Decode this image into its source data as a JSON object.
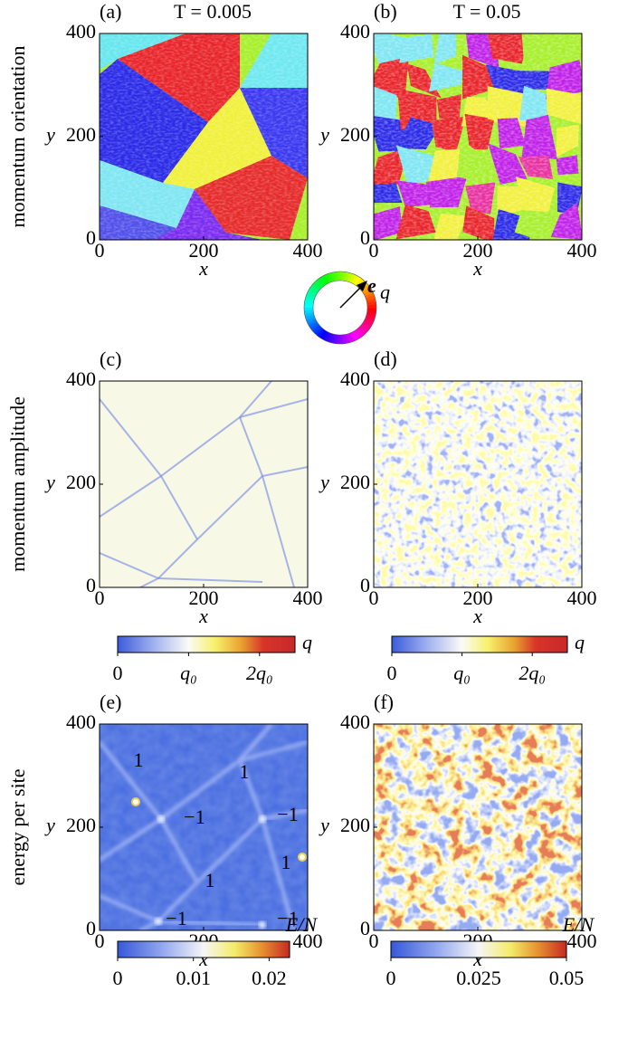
{
  "chart_data": [
    {
      "type": "image",
      "panel": "(a)",
      "title": "T = 0.005",
      "row_label": "momentum orientation",
      "x_label": "x",
      "y_label": "y",
      "xlim": [
        0,
        400
      ],
      "ylim": [
        0,
        400
      ],
      "xticks": [
        0,
        200,
        400
      ],
      "yticks": [
        0,
        200,
        400
      ]
    },
    {
      "type": "image",
      "panel": "(b)",
      "title": "T = 0.05",
      "x_label": "x",
      "y_label": "y",
      "xlim": [
        0,
        400
      ],
      "ylim": [
        0,
        400
      ],
      "xticks": [
        0,
        200,
        400
      ],
      "yticks": [
        0,
        200,
        400
      ]
    },
    {
      "type": "colorwheel",
      "symbol": "e",
      "subscript": "q"
    },
    {
      "type": "image",
      "panel": "(c)",
      "row_label": "momentum amplitude",
      "x_label": "x",
      "y_label": "y",
      "xlim": [
        0,
        400
      ],
      "ylim": [
        0,
        400
      ],
      "xticks": [
        0,
        200,
        400
      ],
      "yticks": [
        0,
        200,
        400
      ]
    },
    {
      "type": "image",
      "panel": "(d)",
      "x_label": "x",
      "y_label": "y",
      "xlim": [
        0,
        400
      ],
      "ylim": [
        0,
        400
      ],
      "xticks": [
        0,
        200,
        400
      ],
      "yticks": [
        0,
        200,
        400
      ]
    },
    {
      "type": "colorbar",
      "label": "q",
      "xlim": [
        0,
        2.5
      ],
      "xticks": [
        0,
        {
          "value": 1,
          "label": "q₀"
        },
        {
          "value": 2,
          "label": "2q₀"
        }
      ]
    },
    {
      "type": "colorbar",
      "label": "q",
      "xlim": [
        0,
        2.5
      ],
      "xticks": [
        0,
        {
          "value": 1,
          "label": "q₀"
        },
        {
          "value": 2,
          "label": "2q₀"
        }
      ]
    },
    {
      "type": "image",
      "panel": "(e)",
      "row_label": "energy per site",
      "x_label": "x",
      "y_label": "y",
      "xlim": [
        0,
        400
      ],
      "ylim": [
        0,
        400
      ],
      "xticks": [
        0,
        200,
        400
      ],
      "yticks": [
        0,
        200,
        400
      ],
      "annotations": [
        "1",
        "1",
        "−1",
        "−1",
        "1",
        "1",
        "−1",
        "−1"
      ]
    },
    {
      "type": "image",
      "panel": "(f)",
      "x_label": "x",
      "y_label": "y",
      "xlim": [
        0,
        400
      ],
      "ylim": [
        0,
        400
      ],
      "xticks": [
        0,
        200,
        400
      ],
      "yticks": [
        0,
        200,
        400
      ]
    },
    {
      "type": "colorbar",
      "label": "E/N",
      "xlim": [
        0,
        0.0227
      ],
      "xticks": [
        0,
        0.01,
        0.02
      ]
    },
    {
      "type": "colorbar",
      "label": "E/N",
      "xlim": [
        0,
        0.05
      ],
      "xticks": [
        0,
        0.025,
        0.05
      ]
    }
  ]
}
